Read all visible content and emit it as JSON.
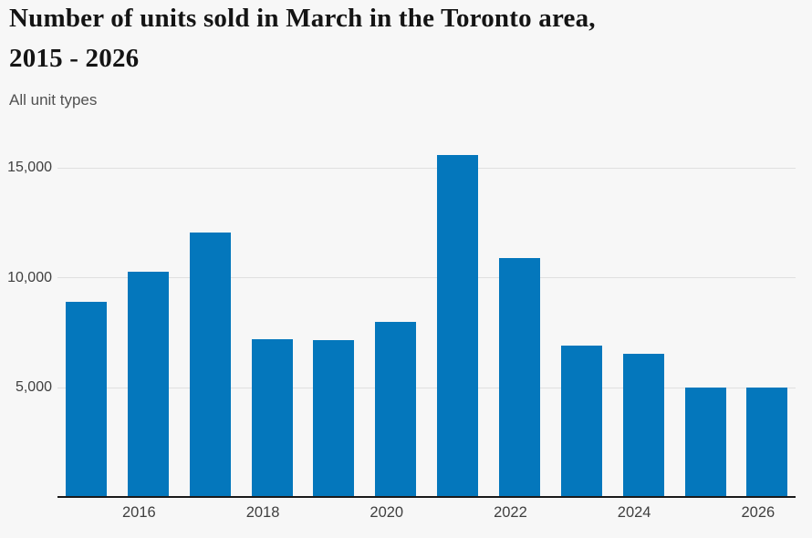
{
  "header": {
    "title_lines": [
      "Number of units sold in March in the Toronto area,",
      "2015 - 2026"
    ],
    "subtitle": "All unit types"
  },
  "chart_data": {
    "type": "bar",
    "title": "Number of units sold in March in the Toronto area, 2015 - 2026",
    "subtitle": "All unit types",
    "categories": [
      "2015",
      "2016",
      "2017",
      "2018",
      "2019",
      "2020",
      "2021",
      "2022",
      "2023",
      "2024",
      "2025",
      "2026"
    ],
    "values": [
      8900,
      10300,
      12050,
      7200,
      7150,
      8000,
      15600,
      10900,
      6900,
      6550,
      5000,
      5000
    ],
    "xlabel": "",
    "ylabel": "",
    "ylim": [
      0,
      16500
    ],
    "yticks": [
      5000,
      10000,
      15000
    ],
    "ytick_labels": [
      "5,000",
      "10,000",
      "15,000"
    ],
    "xtick_labels": [
      "2016",
      "2018",
      "2020",
      "2022",
      "2024",
      "2026"
    ],
    "grid": true,
    "legend_position": "none",
    "bar_color": "#0477bc"
  },
  "colors": {
    "background": "#f7f7f7",
    "bar": "#0477bc",
    "gridline": "#e0e0e0",
    "axis_line": "#1a1a1a",
    "title_text": "#141414",
    "subtitle_text": "#515151",
    "tick_text": "#3f3f3f"
  }
}
